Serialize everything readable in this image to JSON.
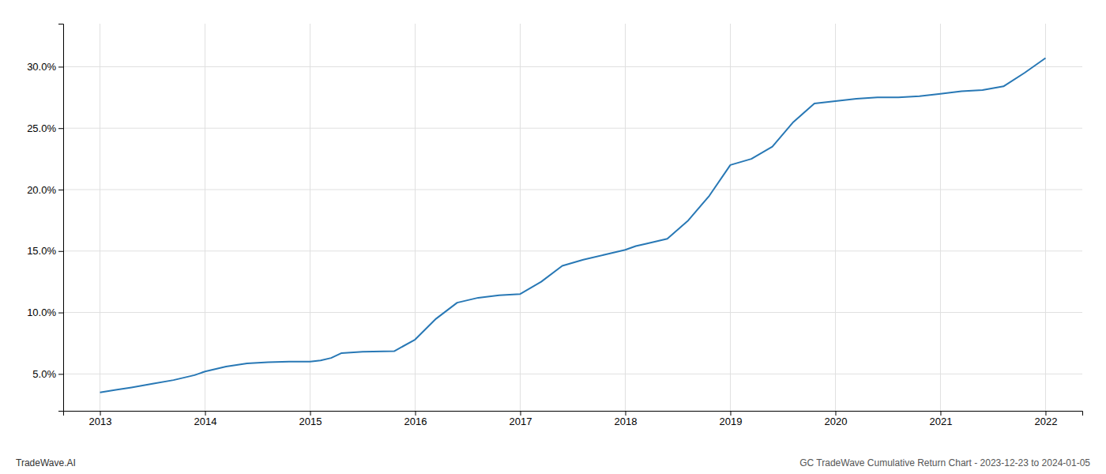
{
  "chart_data": {
    "type": "line",
    "x": [
      2013.0,
      2013.15,
      2013.3,
      2013.5,
      2013.7,
      2013.9,
      2014.0,
      2014.2,
      2014.4,
      2014.6,
      2014.8,
      2015.0,
      2015.1,
      2015.2,
      2015.3,
      2015.5,
      2015.8,
      2016.0,
      2016.2,
      2016.4,
      2016.6,
      2016.8,
      2017.0,
      2017.2,
      2017.4,
      2017.6,
      2017.8,
      2018.0,
      2018.1,
      2018.2,
      2018.4,
      2018.6,
      2018.8,
      2019.0,
      2019.2,
      2019.4,
      2019.6,
      2019.8,
      2020.0,
      2020.1,
      2020.2,
      2020.4,
      2020.6,
      2020.8,
      2021.0,
      2021.2,
      2021.4,
      2021.6,
      2021.8,
      2022.0
    ],
    "values": [
      3.5,
      3.7,
      3.9,
      4.2,
      4.5,
      4.9,
      5.2,
      5.6,
      5.85,
      5.95,
      6.0,
      6.0,
      6.1,
      6.3,
      6.7,
      6.8,
      6.85,
      7.8,
      9.5,
      10.8,
      11.2,
      11.4,
      11.5,
      12.5,
      13.8,
      14.3,
      14.7,
      15.1,
      15.4,
      15.6,
      16.0,
      17.5,
      19.5,
      22.0,
      22.5,
      23.5,
      25.5,
      27.0,
      27.2,
      27.3,
      27.4,
      27.5,
      27.5,
      27.6,
      27.8,
      28.0,
      28.1,
      28.4,
      29.5,
      30.7
    ],
    "color": "#2878b5",
    "xlim": [
      2012.65,
      2022.35
    ],
    "ylim": [
      2.0,
      33.5
    ],
    "xticks": [
      2013,
      2014,
      2015,
      2016,
      2017,
      2018,
      2019,
      2020,
      2021,
      2022
    ],
    "yticks": [
      {
        "value": 5.0,
        "label": "5.0%"
      },
      {
        "value": 10.0,
        "label": "10.0%"
      },
      {
        "value": 15.0,
        "label": "15.0%"
      },
      {
        "value": 20.0,
        "label": "20.0%"
      },
      {
        "value": 25.0,
        "label": "25.0%"
      },
      {
        "value": 30.0,
        "label": "30.0%"
      }
    ],
    "grid": true,
    "annotations": [
      "TradeWave.AI",
      "GC TradeWave Cumulative Return Chart - 2023-12-23 to 2024-01-05"
    ]
  }
}
